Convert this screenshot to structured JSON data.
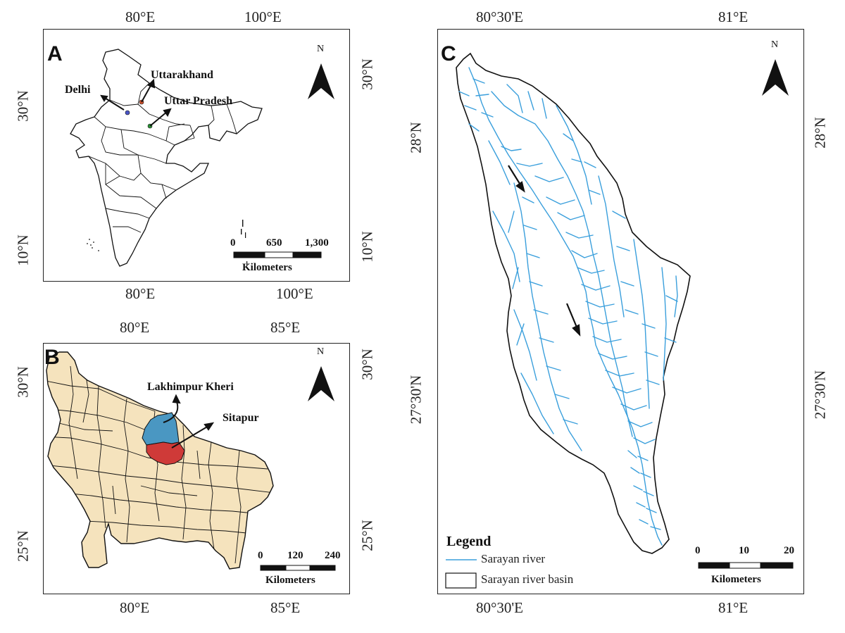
{
  "panels": {
    "a": {
      "label": "A",
      "top_ticks": [
        "80°E",
        "100°E"
      ],
      "bottom_ticks": [
        "80°E",
        "100°E"
      ],
      "left_ticks": [
        "30°N",
        "10°N"
      ],
      "right_ticks": [
        "30°N",
        "10°N"
      ],
      "places": {
        "delhi": "Delhi",
        "uttarakhand": "Uttarakhand",
        "uttar_pradesh": "Uttar Pradesh"
      },
      "north": "N",
      "scale": {
        "ticks": [
          "0",
          "650",
          "1,300"
        ],
        "unit": "Kilometers"
      },
      "colors": {
        "delhi": "#4a56c8",
        "uttarakhand": "#d9552f",
        "uttar_pradesh": "#2e9a3a"
      }
    },
    "b": {
      "label": "B",
      "top_ticks": [
        "80°E",
        "85°E"
      ],
      "bottom_ticks": [
        "80°E",
        "85°E"
      ],
      "left_ticks": [
        "30°N",
        "25°N"
      ],
      "right_ticks": [
        "30°N",
        "25°N"
      ],
      "places": {
        "lakhimpur": "Lakhimpur Kheri",
        "sitapur": "Sitapur"
      },
      "north": "N",
      "scale": {
        "ticks": [
          "0",
          "120",
          "240"
        ],
        "unit": "Kilometers"
      },
      "colors": {
        "state_fill": "#f5e3bd",
        "lakhimpur": "#4a97c2",
        "sitapur": "#cf3a38"
      }
    },
    "c": {
      "label": "C",
      "top_ticks": [
        "80°30'E",
        "81°E"
      ],
      "bottom_ticks": [
        "80°30'E",
        "81°E"
      ],
      "left_ticks": [
        "28°N",
        "27°30'N"
      ],
      "right_ticks": [
        "28°N",
        "27°30'N"
      ],
      "north": "N",
      "scale": {
        "ticks": [
          "0",
          "10",
          "20"
        ],
        "unit": "Kilometers"
      },
      "legend": {
        "title": "Legend",
        "items": [
          "Sarayan river",
          "Sarayan river basin"
        ]
      },
      "colors": {
        "river": "#3a9fdc"
      }
    }
  }
}
